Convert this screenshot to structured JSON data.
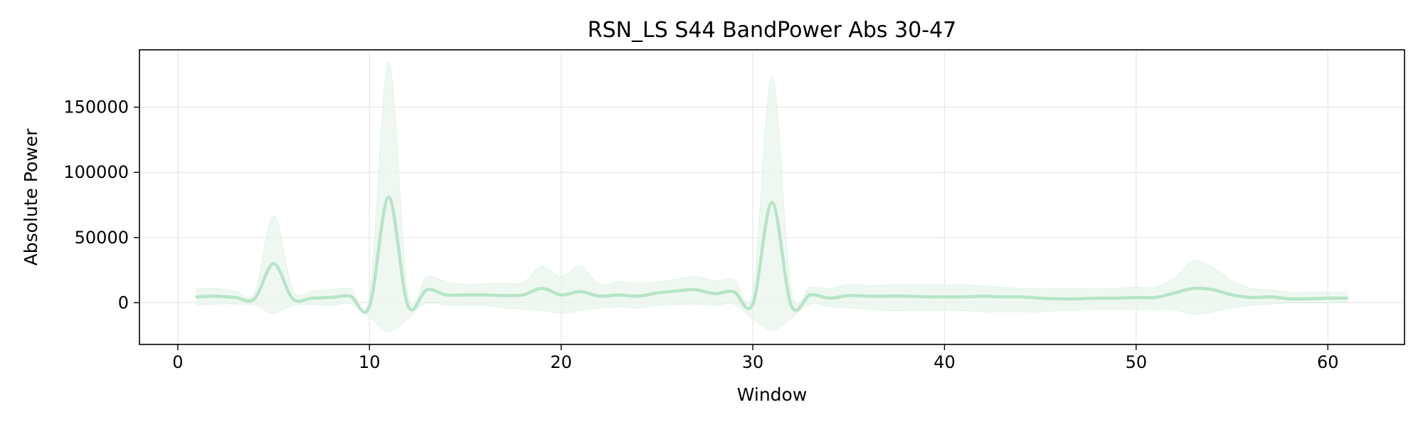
{
  "chart_data": {
    "type": "line",
    "title": "RSN_LS S44 BandPower Abs 30-47",
    "xlabel": "Window",
    "ylabel": "Absolute Power",
    "xlim": [
      -2,
      64
    ],
    "ylim": [
      -32000,
      194000
    ],
    "x_ticks": [
      0,
      10,
      20,
      30,
      40,
      50,
      60
    ],
    "y_ticks": [
      0,
      50000,
      100000,
      150000
    ],
    "grid": true,
    "legend": "none",
    "colors": {
      "line": "#b7e4c7",
      "band": "#e8f5ec",
      "grid": "#e6e6e6",
      "axes": "#000000"
    },
    "series": [
      {
        "x": [
          1,
          2,
          3,
          4,
          5,
          6,
          7,
          8,
          9,
          10,
          11,
          12,
          13,
          14,
          15,
          16,
          17,
          18,
          19,
          20,
          21,
          22,
          23,
          24,
          25,
          26,
          27,
          28,
          29,
          30,
          31,
          32,
          33,
          34,
          35,
          36,
          37,
          38,
          39,
          40,
          41,
          42,
          43,
          44,
          45,
          46,
          47,
          48,
          49,
          50,
          51,
          52,
          53,
          54,
          55,
          56,
          57,
          58,
          59,
          60,
          61
        ],
        "values": [
          4500,
          5000,
          4000,
          3000,
          30000,
          3000,
          3500,
          4000,
          5000,
          -3000,
          81000,
          -2000,
          10000,
          6000,
          6000,
          6000,
          5500,
          6000,
          11000,
          6000,
          8500,
          5000,
          6000,
          5000,
          7500,
          9000,
          10000,
          7000,
          8500,
          -1000,
          77000,
          -2000,
          6000,
          3500,
          5500,
          5000,
          5000,
          5000,
          4500,
          4500,
          4500,
          5000,
          4500,
          4500,
          3500,
          3000,
          3000,
          3500,
          3500,
          4000,
          4000,
          7500,
          11000,
          10000,
          6000,
          4000,
          4500,
          3000,
          3000,
          3500,
          3500
        ],
        "upper": [
          11000,
          11000,
          9000,
          8000,
          67000,
          10000,
          9000,
          10000,
          11000,
          5000,
          185000,
          8000,
          20000,
          16000,
          14000,
          14500,
          15000,
          15500,
          28000,
          20000,
          28000,
          14000,
          16000,
          15000,
          16000,
          18000,
          20000,
          17000,
          18000,
          10000,
          174000,
          10000,
          12000,
          11000,
          14000,
          13000,
          13500,
          13500,
          13500,
          13500,
          13500,
          13000,
          12000,
          11000,
          11000,
          11000,
          11000,
          11000,
          11000,
          12000,
          12000,
          19000,
          32000,
          27000,
          17000,
          11000,
          10000,
          8000,
          8000,
          8000,
          8000
        ],
        "lower": [
          -2000,
          -1000,
          -1000,
          -2000,
          -8000,
          -2000,
          -1500,
          -2000,
          -1000,
          -11000,
          -22000,
          -12000,
          0,
          -2000,
          -2000,
          -2000,
          -4000,
          -5000,
          -6000,
          -8000,
          -6000,
          -4000,
          -3000,
          -4000,
          -2000,
          -1500,
          -1000,
          -2000,
          -1000,
          -12000,
          -21000,
          -12000,
          -1000,
          -3000,
          -4000,
          -5000,
          -6000,
          -6000,
          -6000,
          -6000,
          -6000,
          -7000,
          -7000,
          -7000,
          -7000,
          -6000,
          -5500,
          -5000,
          -5000,
          -5000,
          -5500,
          -5500,
          -9000,
          -7000,
          -4000,
          -2000,
          -1000,
          0,
          0,
          0,
          0
        ]
      }
    ]
  }
}
